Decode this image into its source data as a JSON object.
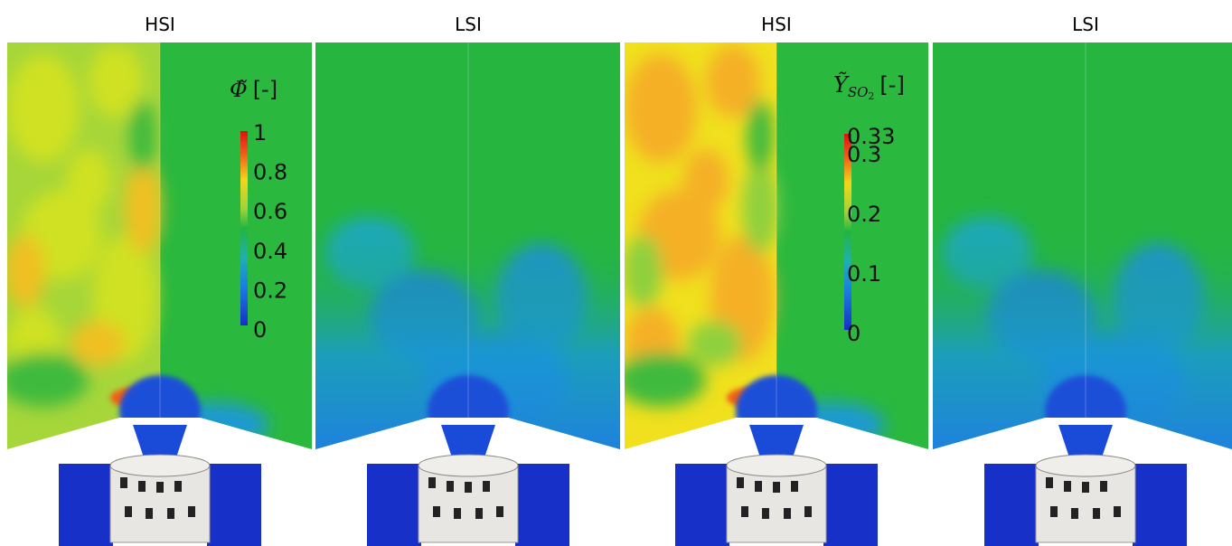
{
  "panels": [
    {
      "title": "HSI"
    },
    {
      "title": "LSI"
    },
    {
      "title": "HSI"
    },
    {
      "title": "LSI"
    }
  ],
  "colorbars": [
    {
      "symbol": "Φ̃",
      "unit": "[-]",
      "ticks": [
        1,
        0.8,
        0.6,
        0.4,
        0.2,
        0
      ]
    },
    {
      "symbol": "Ỹ",
      "subscript": "SO",
      "subsubscript": "2",
      "unit": "[-]",
      "ticks": [
        0.33,
        0.3,
        0.2,
        0.1,
        0
      ]
    }
  ]
}
